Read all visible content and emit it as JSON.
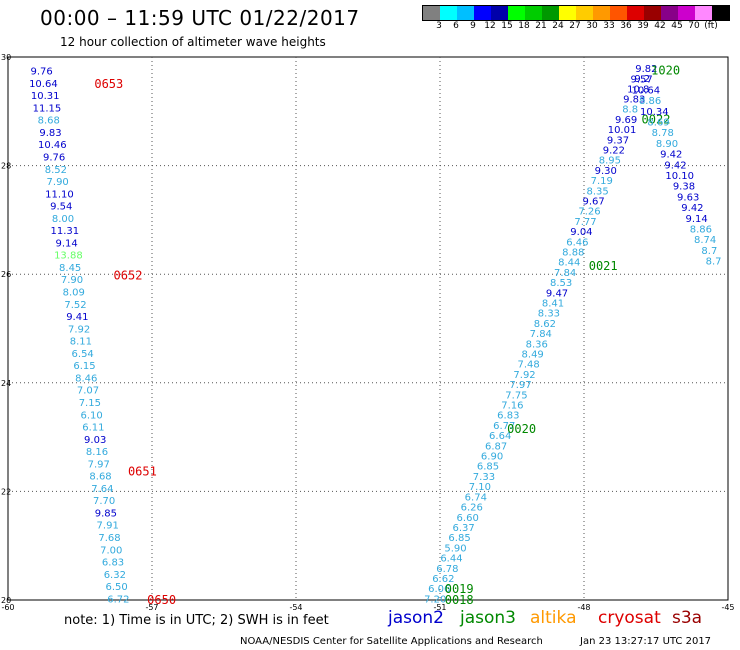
{
  "title": "00:00 – 11:59 UTC 01/22/2017",
  "subtitle": "12 hour collection of altimeter wave heights",
  "colorbar": {
    "colors": [
      "#808080",
      "#00ffff",
      "#00bfff",
      "#0000ff",
      "#0000aa",
      "#00ff00",
      "#00cc00",
      "#009900",
      "#ffff00",
      "#ffcc00",
      "#ff9900",
      "#ff5500",
      "#dd0000",
      "#990000",
      "#880088",
      "#cc00cc",
      "#ff88ff",
      "#000000"
    ],
    "labels": [
      "3",
      "6",
      "9",
      "12",
      "15",
      "18",
      "21",
      "24",
      "27",
      "30",
      "33",
      "36",
      "39",
      "42",
      "45",
      "70",
      "(ft)"
    ]
  },
  "axes": {
    "x_ticks": [
      "-60",
      "-57",
      "-54",
      "-51",
      "-48",
      "-45"
    ],
    "y_ticks": [
      "30",
      "28",
      "26",
      "24",
      "22",
      "20"
    ],
    "grid": "dotted"
  },
  "colors": {
    "jason2": "#0000cc",
    "jason3": "#008800",
    "altika": "#ff9900",
    "cryosat": "#dd0000",
    "s3a": "#990000",
    "cyan": "#33aadd",
    "green_label": "#66ff66"
  },
  "chart_data": {
    "type": "scatter",
    "xlim": [
      -60,
      -45
    ],
    "ylim": [
      20,
      30
    ],
    "tracks": [
      {
        "name": "jason2-west",
        "pass_labels": [
          {
            "text": "0653",
            "lon": -57.9,
            "lat": 29.5,
            "sat": "cryosat"
          },
          {
            "text": "0652",
            "lon": -57.5,
            "lat": 25.98,
            "sat": "cryosat"
          },
          {
            "text": "0651",
            "lon": -57.2,
            "lat": 22.37,
            "sat": "cryosat"
          },
          {
            "text": "0650",
            "lon": -56.8,
            "lat": 20.0,
            "sat": "cryosat"
          }
        ],
        "lon_start": -59.3,
        "lon_end": -57.7,
        "lat_start": 29.75,
        "lat_end": 20.03,
        "values": [
          {
            "v": "9.76",
            "c": "jason2"
          },
          {
            "v": "10.64",
            "c": "jason2"
          },
          {
            "v": "10.31",
            "c": "jason2"
          },
          {
            "v": "11.15",
            "c": "jason2"
          },
          {
            "v": "8.68",
            "c": "cyan"
          },
          {
            "v": "9.83",
            "c": "jason2"
          },
          {
            "v": "10.46",
            "c": "jason2"
          },
          {
            "v": "9.76",
            "c": "jason2"
          },
          {
            "v": "8.52",
            "c": "cyan"
          },
          {
            "v": "7.90",
            "c": "cyan"
          },
          {
            "v": "11.10",
            "c": "jason2"
          },
          {
            "v": "9.54",
            "c": "jason2"
          },
          {
            "v": "8.00",
            "c": "cyan"
          },
          {
            "v": "11.31",
            "c": "jason2"
          },
          {
            "v": "9.14",
            "c": "jason2"
          },
          {
            "v": "13.88",
            "c": "green_label"
          },
          {
            "v": "8.45",
            "c": "cyan"
          },
          {
            "v": "7.90",
            "c": "cyan"
          },
          {
            "v": "8.09",
            "c": "cyan"
          },
          {
            "v": "7.52",
            "c": "cyan"
          },
          {
            "v": "9.41",
            "c": "jason2"
          },
          {
            "v": "7.92",
            "c": "cyan"
          },
          {
            "v": "8.11",
            "c": "cyan"
          },
          {
            "v": "6.54",
            "c": "cyan"
          },
          {
            "v": "6.15",
            "c": "cyan"
          },
          {
            "v": "8.46",
            "c": "cyan"
          },
          {
            "v": "7.07",
            "c": "cyan"
          },
          {
            "v": "7.15",
            "c": "cyan"
          },
          {
            "v": "6.10",
            "c": "cyan"
          },
          {
            "v": "6.11",
            "c": "cyan"
          },
          {
            "v": "9.03",
            "c": "jason2"
          },
          {
            "v": "8.16",
            "c": "cyan"
          },
          {
            "v": "7.97",
            "c": "cyan"
          },
          {
            "v": "8.68",
            "c": "cyan"
          },
          {
            "v": "7.64",
            "c": "cyan"
          },
          {
            "v": "7.70",
            "c": "cyan"
          },
          {
            "v": "9.85",
            "c": "jason2"
          },
          {
            "v": "7.91",
            "c": "cyan"
          },
          {
            "v": "7.68",
            "c": "cyan"
          },
          {
            "v": "7.00",
            "c": "cyan"
          },
          {
            "v": "6.83",
            "c": "cyan"
          },
          {
            "v": "6.32",
            "c": "cyan"
          },
          {
            "v": "6.50",
            "c": "cyan"
          },
          {
            "v": "6.72",
            "c": "cyan"
          }
        ]
      },
      {
        "name": "jason3-ascending",
        "pass_labels": [
          {
            "text": "0018",
            "lon": -50.6,
            "lat": 20.0,
            "sat": "jason3"
          },
          {
            "text": "0019",
            "lon": -50.6,
            "lat": 20.2,
            "sat": "jason3"
          },
          {
            "text": "0020",
            "lon": -49.3,
            "lat": 23.15,
            "sat": "jason3"
          },
          {
            "text": "0021",
            "lon": -47.6,
            "lat": 26.15,
            "sat": "jason3"
          },
          {
            "text": "0022",
            "lon": -46.5,
            "lat": 28.85,
            "sat": "jason3"
          },
          {
            "text": "1020",
            "lon": -46.3,
            "lat": 29.75,
            "sat": "jason3"
          }
        ],
        "lon_start": -51.1,
        "lon_end": -46.7,
        "lat_start": 20.03,
        "lat_end": 29.8,
        "values": [
          {
            "v": "7.20",
            "c": "cyan"
          },
          {
            "v": "6.06",
            "c": "cyan"
          },
          {
            "v": "6.62",
            "c": "cyan"
          },
          {
            "v": "6.78",
            "c": "cyan"
          },
          {
            "v": "6.44",
            "c": "cyan"
          },
          {
            "v": "5.90",
            "c": "cyan"
          },
          {
            "v": "6.85",
            "c": "cyan"
          },
          {
            "v": "6.37",
            "c": "cyan"
          },
          {
            "v": "6.60",
            "c": "cyan"
          },
          {
            "v": "6.26",
            "c": "cyan"
          },
          {
            "v": "6.74",
            "c": "cyan"
          },
          {
            "v": "7.10",
            "c": "cyan"
          },
          {
            "v": "7.33",
            "c": "cyan"
          },
          {
            "v": "6.85",
            "c": "cyan"
          },
          {
            "v": "6.90",
            "c": "cyan"
          },
          {
            "v": "6.87",
            "c": "cyan"
          },
          {
            "v": "6.64",
            "c": "cyan"
          },
          {
            "v": "6.77",
            "c": "cyan"
          },
          {
            "v": "6.83",
            "c": "cyan"
          },
          {
            "v": "7.16",
            "c": "cyan"
          },
          {
            "v": "7.75",
            "c": "cyan"
          },
          {
            "v": "7.97",
            "c": "cyan"
          },
          {
            "v": "7.92",
            "c": "cyan"
          },
          {
            "v": "7.48",
            "c": "cyan"
          },
          {
            "v": "8.49",
            "c": "cyan"
          },
          {
            "v": "8.36",
            "c": "cyan"
          },
          {
            "v": "7.84",
            "c": "cyan"
          },
          {
            "v": "8.62",
            "c": "cyan"
          },
          {
            "v": "8.33",
            "c": "cyan"
          },
          {
            "v": "8.41",
            "c": "cyan"
          },
          {
            "v": "9.47",
            "c": "jason2"
          },
          {
            "v": "8.53",
            "c": "cyan"
          },
          {
            "v": "7.84",
            "c": "cyan"
          },
          {
            "v": "8.44",
            "c": "cyan"
          },
          {
            "v": "8.88",
            "c": "cyan"
          },
          {
            "v": "6.46",
            "c": "cyan"
          },
          {
            "v": "9.04",
            "c": "jason2"
          },
          {
            "v": "7.77",
            "c": "cyan"
          },
          {
            "v": "7.26",
            "c": "cyan"
          },
          {
            "v": "9.67",
            "c": "jason2"
          },
          {
            "v": "8.35",
            "c": "cyan"
          },
          {
            "v": "7.19",
            "c": "cyan"
          },
          {
            "v": "9.30",
            "c": "jason2"
          },
          {
            "v": "8.95",
            "c": "cyan"
          },
          {
            "v": "9.22",
            "c": "jason2"
          },
          {
            "v": "9.37",
            "c": "jason2"
          },
          {
            "v": "10.01",
            "c": "jason2"
          },
          {
            "v": "9.69",
            "c": "jason2"
          },
          {
            "v": "8.8",
            "c": "cyan"
          },
          {
            "v": "9.83",
            "c": "jason2"
          },
          {
            "v": "10.8",
            "c": "jason2"
          },
          {
            "v": "9.2",
            "c": "jason2"
          },
          {
            "v": "9.82",
            "c": "jason2"
          }
        ]
      },
      {
        "name": "jason2-descending-east",
        "pass_labels": [],
        "lon_start": -46.8,
        "lon_end": -45.3,
        "lat_start": 29.6,
        "lat_end": 26.25,
        "values": [
          {
            "v": "9.57",
            "c": "jason2"
          },
          {
            "v": "10.64",
            "c": "jason2"
          },
          {
            "v": "8.86",
            "c": "cyan"
          },
          {
            "v": "10.34",
            "c": "jason2"
          },
          {
            "v": "8.69",
            "c": "cyan"
          },
          {
            "v": "8.78",
            "c": "cyan"
          },
          {
            "v": "8.90",
            "c": "cyan"
          },
          {
            "v": "9.42",
            "c": "jason2"
          },
          {
            "v": "9.42",
            "c": "jason2"
          },
          {
            "v": "10.10",
            "c": "jason2"
          },
          {
            "v": "9.38",
            "c": "jason2"
          },
          {
            "v": "9.63",
            "c": "jason2"
          },
          {
            "v": "9.42",
            "c": "jason2"
          },
          {
            "v": "9.14",
            "c": "jason2"
          },
          {
            "v": "8.86",
            "c": "cyan"
          },
          {
            "v": "8.74",
            "c": "cyan"
          },
          {
            "v": "8.7",
            "c": "cyan"
          },
          {
            "v": "8.7",
            "c": "cyan"
          }
        ]
      }
    ]
  },
  "note": "note: 1) Time is in UTC; 2) SWH is in feet",
  "legend": [
    {
      "label": "jason2",
      "key": "jason2"
    },
    {
      "label": "jason3",
      "key": "jason3"
    },
    {
      "label": "altika",
      "key": "altika"
    },
    {
      "label": "cryosat",
      "key": "cryosat"
    },
    {
      "label": "s3a",
      "key": "s3a"
    }
  ],
  "footer_left": "NOAA/NESDIS Center for Satellite Applications and Research",
  "footer_right": "Jan 23 13:27:17 UTC 2017"
}
